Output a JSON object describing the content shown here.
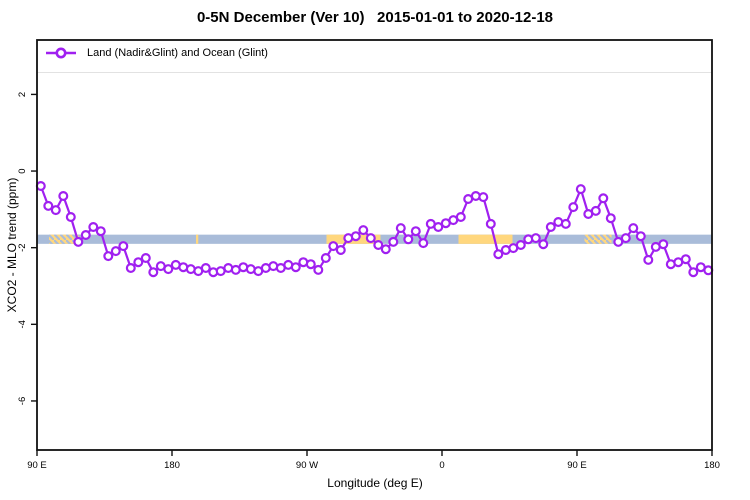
{
  "title": "0-5N December (Ver 10)   2015-01-01 to 2020-12-18",
  "legend": {
    "label": "Land (Nadir&Glint) and Ocean (Glint)"
  },
  "colors": {
    "series": "#A020F0",
    "marker_fill": "#ffffff",
    "band_blue": "#A9BCD9",
    "band_yellow": "#FFD77E",
    "axis": "#111111",
    "legend_divider": "#e2e2e2"
  },
  "chart_data": {
    "type": "line",
    "title": "0-5N December (Ver 10)   2015-01-01 to 2020-12-18",
    "xlabel": "Longitude (deg E)",
    "ylabel": "XCO2 - MLO trend (ppm)",
    "xlim": [
      90,
      540
    ],
    "ylim": [
      -7.28,
      3.42
    ],
    "grid": false,
    "legend_position": "top-left-inside",
    "x_ticks": [
      {
        "value": 90,
        "label": "90 E"
      },
      {
        "value": 180,
        "label": "180"
      },
      {
        "value": 270,
        "label": "90 W"
      },
      {
        "value": 360,
        "label": "0"
      },
      {
        "value": 450,
        "label": "90 E"
      },
      {
        "value": 540,
        "label": "180"
      }
    ],
    "y_ticks": [
      {
        "value": 2,
        "label": "2"
      },
      {
        "value": 0,
        "label": "0"
      },
      {
        "value": -2,
        "label": "-2"
      },
      {
        "value": -4,
        "label": "-4"
      },
      {
        "value": -6,
        "label": "-6"
      }
    ],
    "band": {
      "description": "horizontal reference band",
      "y_range": [
        -1.9,
        -1.66
      ],
      "yellow_segments": [
        {
          "x_range": [
            98,
            119
          ],
          "hatched": true
        },
        {
          "x_range": [
            196,
            197.5
          ],
          "hatched": false
        },
        {
          "x_range": [
            283,
            319
          ],
          "hatched": false
        },
        {
          "x_range": [
            371,
            407
          ],
          "hatched": false
        },
        {
          "x_range": [
            455,
            473
          ],
          "hatched": true
        }
      ]
    },
    "series": [
      {
        "name": "Land (Nadir&Glint) and Ocean (Glint)",
        "marker": "open-circle",
        "x": [
          92.5,
          97.5,
          102.5,
          107.5,
          112.5,
          117.5,
          122.5,
          127.5,
          132.5,
          137.5,
          142.5,
          147.5,
          152.5,
          157.5,
          162.5,
          167.5,
          172.5,
          177.5,
          182.5,
          187.5,
          192.5,
          197.5,
          202.5,
          207.5,
          212.5,
          217.5,
          222.5,
          227.5,
          232.5,
          237.5,
          242.5,
          247.5,
          252.5,
          257.5,
          262.5,
          267.5,
          272.5,
          277.5,
          282.5,
          287.5,
          292.5,
          297.5,
          302.5,
          307.5,
          312.5,
          317.5,
          322.5,
          327.5,
          332.5,
          337.5,
          342.5,
          347.5,
          352.5,
          357.5,
          362.5,
          367.5,
          372.5,
          377.5,
          382.5,
          387.5,
          392.5,
          397.5,
          402.5,
          407.5,
          412.5,
          417.5,
          422.5,
          427.5,
          432.5,
          437.5,
          442.5,
          447.5,
          452.5,
          457.5,
          462.5,
          467.5,
          472.5,
          477.5,
          482.5,
          487.5,
          492.5,
          497.5,
          502.5,
          507.5,
          512.5,
          517.5,
          522.5,
          527.5,
          532.5,
          537.5
        ],
        "values": [
          -0.39,
          -0.91,
          -1.02,
          -0.65,
          -1.2,
          -1.85,
          -1.67,
          -1.46,
          -1.57,
          -2.22,
          -2.09,
          -1.96,
          -2.53,
          -2.38,
          -2.27,
          -2.64,
          -2.48,
          -2.56,
          -2.45,
          -2.51,
          -2.56,
          -2.61,
          -2.53,
          -2.64,
          -2.61,
          -2.53,
          -2.58,
          -2.51,
          -2.56,
          -2.61,
          -2.53,
          -2.48,
          -2.53,
          -2.45,
          -2.51,
          -2.38,
          -2.43,
          -2.58,
          -2.27,
          -1.96,
          -2.06,
          -1.75,
          -1.7,
          -1.54,
          -1.75,
          -1.93,
          -2.04,
          -1.85,
          -1.49,
          -1.78,
          -1.57,
          -1.88,
          -1.38,
          -1.46,
          -1.36,
          -1.28,
          -1.2,
          -0.73,
          -0.65,
          -0.68,
          -1.38,
          -2.17,
          -2.06,
          -2.01,
          -1.93,
          -1.78,
          -1.75,
          -1.91,
          -1.46,
          -1.33,
          -1.38,
          -0.94,
          -0.47,
          -1.12,
          -1.04,
          -0.71,
          -1.23,
          -1.85,
          -1.75,
          -1.49,
          -1.7,
          -2.32,
          -1.98,
          -1.91,
          -2.43,
          -2.38,
          -2.3,
          -2.64,
          -2.51,
          -2.59
        ]
      }
    ]
  }
}
